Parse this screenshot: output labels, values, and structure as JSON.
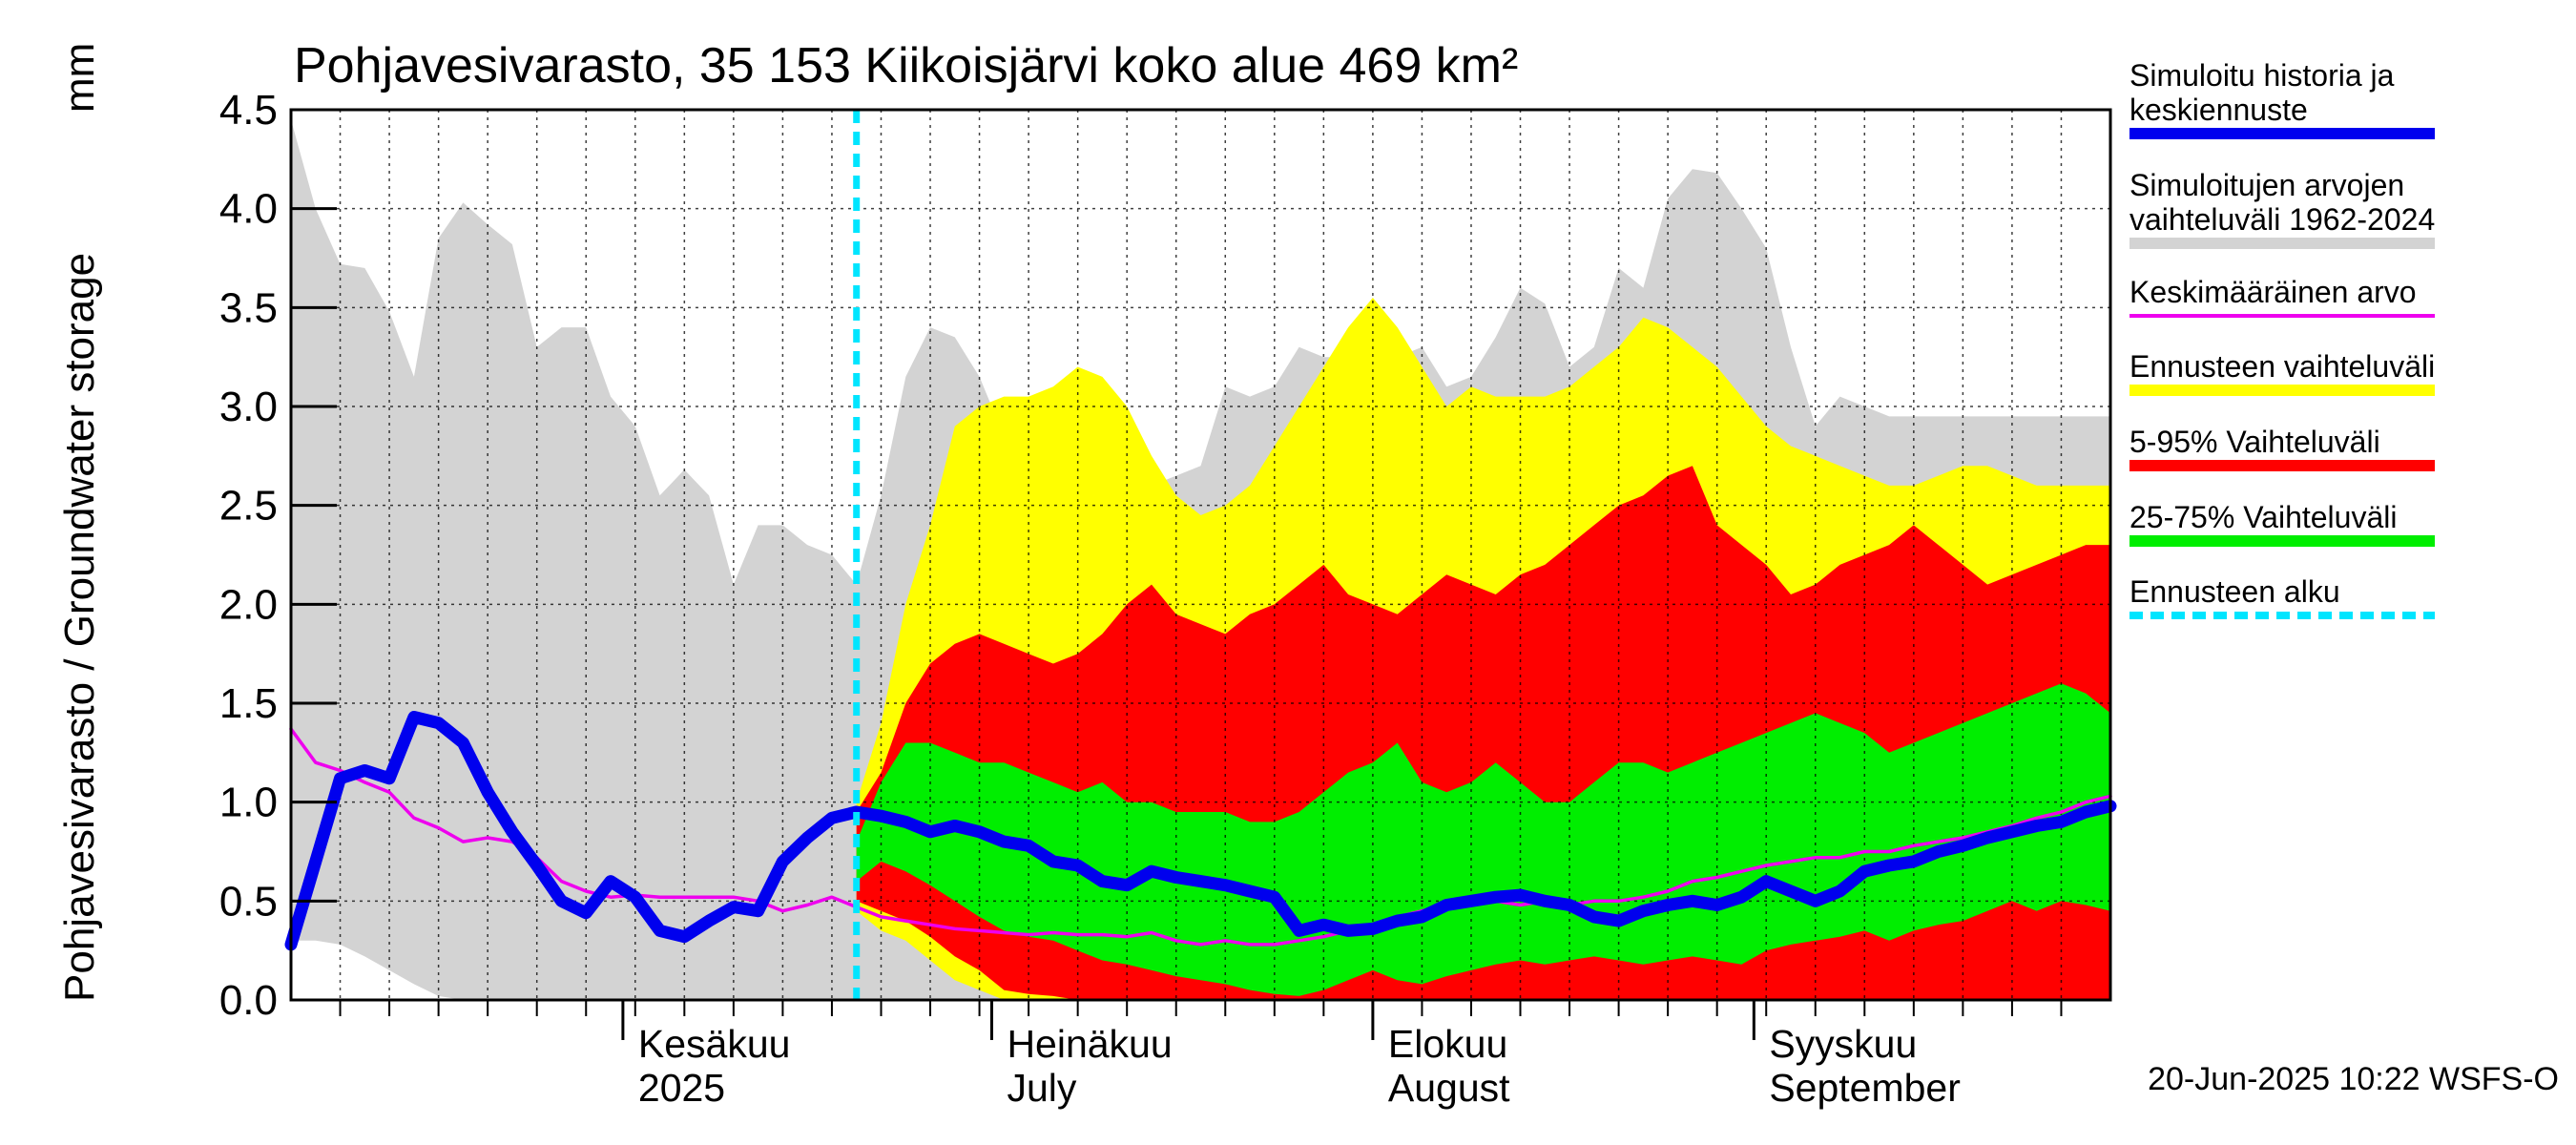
{
  "chart_data": {
    "type": "area",
    "title": "Pohjavesivarasto, 35 153 Kiikoisjärvi koko alue 469 km²",
    "ylabel": "Pohjavesivarasto / Groundwater storage",
    "yunit": "mm",
    "ylim": [
      0,
      4.5
    ],
    "yticks": [
      "0.0",
      "0.5",
      "1.0",
      "1.5",
      "2.0",
      "2.5",
      "3.0",
      "3.5",
      "4.0",
      "4.5"
    ],
    "xlim": [
      "2025-05-05",
      "2025-09-30"
    ],
    "forecast_start": "2025-06-20",
    "months": [
      {
        "date": "2025-06-01",
        "label1": "Kesäkuu",
        "label2": "2025"
      },
      {
        "date": "2025-07-01",
        "label1": "Heinäkuu",
        "label2": "July"
      },
      {
        "date": "2025-08-01",
        "label1": "Elokuu",
        "label2": "August"
      },
      {
        "date": "2025-09-01",
        "label1": "Syyskuu",
        "label2": "September"
      }
    ],
    "colors": {
      "hist_range": "#d3d3d3",
      "forecast_range": "#ffff00",
      "p5_95": "#ff0000",
      "p25_75": "#00ee00",
      "median": "#0000ee",
      "mean": "#ee00ee",
      "forecast_start": "#00e5ff"
    },
    "legend": [
      {
        "label": "Simuloitu historia ja keskiennuste",
        "color": "#0000ee",
        "style": "solid"
      },
      {
        "label": "Simuloitujen arvojen vaihteluväli 1962-2024",
        "color": "#d3d3d3",
        "style": "solid"
      },
      {
        "label": "Keskimääräinen arvo",
        "color": "#ee00ee",
        "style": "thin"
      },
      {
        "label": "Ennusteen vaihteluväli",
        "color": "#ffff00",
        "style": "solid"
      },
      {
        "label": "5-95% Vaihteluväli",
        "color": "#ff0000",
        "style": "solid"
      },
      {
        "label": "25-75% Vaihteluväli",
        "color": "#00ee00",
        "style": "solid"
      },
      {
        "label": "Ennusteen alku",
        "color": "#00e5ff",
        "style": "dashed"
      }
    ],
    "timestamp": "20-Jun-2025 10:22 WSFS-O",
    "series": {
      "hist_range": {
        "x": [
          "2025-05-05",
          "2025-05-07",
          "2025-05-09",
          "2025-05-11",
          "2025-05-13",
          "2025-05-15",
          "2025-05-17",
          "2025-05-19",
          "2025-05-21",
          "2025-05-23",
          "2025-05-25",
          "2025-05-27",
          "2025-05-29",
          "2025-05-31",
          "2025-06-02",
          "2025-06-04",
          "2025-06-06",
          "2025-06-08",
          "2025-06-10",
          "2025-06-12",
          "2025-06-14",
          "2025-06-16",
          "2025-06-18",
          "2025-06-20",
          "2025-06-22",
          "2025-06-24",
          "2025-06-26",
          "2025-06-28",
          "2025-06-30",
          "2025-07-02",
          "2025-07-04",
          "2025-07-06",
          "2025-07-08",
          "2025-07-10",
          "2025-07-12",
          "2025-07-14",
          "2025-07-16",
          "2025-07-18",
          "2025-07-20",
          "2025-07-22",
          "2025-07-24",
          "2025-07-26",
          "2025-07-28",
          "2025-07-30",
          "2025-08-01",
          "2025-08-03",
          "2025-08-05",
          "2025-08-07",
          "2025-08-09",
          "2025-08-11",
          "2025-08-13",
          "2025-08-15",
          "2025-08-17",
          "2025-08-19",
          "2025-08-21",
          "2025-08-23",
          "2025-08-25",
          "2025-08-27",
          "2025-08-29",
          "2025-08-31",
          "2025-09-02",
          "2025-09-04",
          "2025-09-06",
          "2025-09-08",
          "2025-09-10",
          "2025-09-12",
          "2025-09-14",
          "2025-09-16",
          "2025-09-18",
          "2025-09-20",
          "2025-09-22",
          "2025-09-24",
          "2025-09-26",
          "2025-09-28",
          "2025-09-30"
        ],
        "low": [
          0.3,
          0.3,
          0.28,
          0.22,
          0.15,
          0.08,
          0.02,
          0,
          0,
          0,
          0,
          0,
          0,
          0,
          0,
          0,
          0,
          0,
          0,
          0,
          0,
          0,
          0,
          0,
          0,
          0,
          0,
          0,
          0,
          0,
          0,
          0,
          0,
          0,
          0,
          0,
          0,
          0,
          0,
          0,
          0,
          0,
          0,
          0,
          0,
          0,
          0,
          0,
          0,
          0,
          0,
          0,
          0,
          0,
          0,
          0,
          0,
          0,
          0,
          0,
          0,
          0,
          0,
          0,
          0,
          0,
          0,
          0,
          0,
          0,
          0,
          0,
          0,
          0,
          0
        ],
        "high": [
          4.45,
          4.0,
          3.72,
          3.7,
          3.48,
          3.15,
          3.85,
          4.03,
          3.92,
          3.82,
          3.3,
          3.4,
          3.4,
          3.05,
          2.9,
          2.55,
          2.68,
          2.55,
          2.1,
          2.4,
          2.4,
          2.3,
          2.25,
          2.1,
          2.55,
          3.15,
          3.4,
          3.35,
          3.15,
          2.85,
          2.5,
          2.48,
          2.45,
          2.7,
          2.8,
          2.6,
          2.65,
          2.7,
          3.1,
          3.05,
          3.1,
          3.3,
          3.25,
          3.25,
          3.4,
          3.25,
          3.3,
          3.1,
          3.15,
          3.35,
          3.6,
          3.52,
          3.2,
          3.3,
          3.7,
          3.6,
          4.05,
          4.2,
          4.18,
          4.0,
          3.8,
          3.3,
          2.9,
          3.05,
          3.0,
          2.95,
          2.95,
          2.95,
          2.95,
          2.95,
          2.95,
          2.95,
          2.95,
          2.95,
          2.95
        ]
      },
      "forecast": {
        "x": [
          "2025-06-20",
          "2025-06-22",
          "2025-06-24",
          "2025-06-26",
          "2025-06-28",
          "2025-06-30",
          "2025-07-02",
          "2025-07-04",
          "2025-07-06",
          "2025-07-08",
          "2025-07-10",
          "2025-07-12",
          "2025-07-14",
          "2025-07-16",
          "2025-07-18",
          "2025-07-20",
          "2025-07-22",
          "2025-07-24",
          "2025-07-26",
          "2025-07-28",
          "2025-07-30",
          "2025-08-01",
          "2025-08-03",
          "2025-08-05",
          "2025-08-07",
          "2025-08-09",
          "2025-08-11",
          "2025-08-13",
          "2025-08-15",
          "2025-08-17",
          "2025-08-19",
          "2025-08-21",
          "2025-08-23",
          "2025-08-25",
          "2025-08-27",
          "2025-08-29",
          "2025-08-31",
          "2025-09-02",
          "2025-09-04",
          "2025-09-06",
          "2025-09-08",
          "2025-09-10",
          "2025-09-12",
          "2025-09-14",
          "2025-09-16",
          "2025-09-18",
          "2025-09-20",
          "2025-09-22",
          "2025-09-24",
          "2025-09-26",
          "2025-09-28",
          "2025-09-30"
        ],
        "min": [
          0.45,
          0.35,
          0.3,
          0.2,
          0.1,
          0.05,
          0,
          0,
          0,
          0,
          0,
          0,
          0,
          0,
          0,
          0,
          0,
          0,
          0,
          0,
          0,
          0,
          0,
          0,
          0,
          0,
          0,
          0,
          0,
          0,
          0,
          0,
          0,
          0,
          0,
          0,
          0,
          0,
          0,
          0,
          0,
          0,
          0,
          0,
          0,
          0,
          0,
          0,
          0,
          0,
          0,
          0
        ],
        "p5": [
          0.5,
          0.45,
          0.4,
          0.32,
          0.22,
          0.15,
          0.05,
          0.03,
          0.02,
          0,
          0,
          0,
          0,
          0,
          0,
          0,
          0,
          0,
          0,
          0,
          0,
          0,
          0,
          0,
          0,
          0,
          0,
          0,
          0,
          0,
          0,
          0,
          0,
          0,
          0,
          0,
          0,
          0,
          0,
          0,
          0,
          0,
          0,
          0,
          0,
          0,
          0,
          0,
          0,
          0,
          0,
          0
        ],
        "p25": [
          0.6,
          0.7,
          0.65,
          0.58,
          0.5,
          0.42,
          0.35,
          0.32,
          0.3,
          0.25,
          0.2,
          0.18,
          0.15,
          0.12,
          0.1,
          0.08,
          0.05,
          0.03,
          0.02,
          0.05,
          0.1,
          0.15,
          0.1,
          0.08,
          0.12,
          0.15,
          0.18,
          0.2,
          0.18,
          0.2,
          0.22,
          0.2,
          0.18,
          0.2,
          0.22,
          0.2,
          0.18,
          0.25,
          0.28,
          0.3,
          0.32,
          0.35,
          0.3,
          0.35,
          0.38,
          0.4,
          0.45,
          0.5,
          0.45,
          0.5,
          0.48,
          0.45
        ],
        "p75": [
          0.8,
          1.1,
          1.3,
          1.3,
          1.25,
          1.2,
          1.2,
          1.15,
          1.1,
          1.05,
          1.1,
          1.0,
          1.0,
          0.95,
          0.95,
          0.95,
          0.9,
          0.9,
          0.95,
          1.05,
          1.15,
          1.2,
          1.3,
          1.1,
          1.05,
          1.1,
          1.2,
          1.1,
          1.0,
          1.0,
          1.1,
          1.2,
          1.2,
          1.15,
          1.2,
          1.25,
          1.3,
          1.35,
          1.4,
          1.45,
          1.4,
          1.35,
          1.25,
          1.3,
          1.35,
          1.4,
          1.45,
          1.5,
          1.55,
          1.6,
          1.55,
          1.45
        ],
        "p95": [
          0.95,
          1.15,
          1.5,
          1.7,
          1.8,
          1.85,
          1.8,
          1.75,
          1.7,
          1.75,
          1.85,
          2.0,
          2.1,
          1.95,
          1.9,
          1.85,
          1.95,
          2.0,
          2.1,
          2.2,
          2.05,
          2.0,
          1.95,
          2.05,
          2.15,
          2.1,
          2.05,
          2.15,
          2.2,
          2.3,
          2.4,
          2.5,
          2.55,
          2.65,
          2.7,
          2.4,
          2.3,
          2.2,
          2.05,
          2.1,
          2.2,
          2.25,
          2.3,
          2.4,
          2.3,
          2.2,
          2.1,
          2.15,
          2.2,
          2.25,
          2.3,
          2.3
        ],
        "max": [
          1.0,
          1.4,
          2.0,
          2.4,
          2.9,
          3.0,
          3.05,
          3.05,
          3.1,
          3.2,
          3.15,
          3.0,
          2.75,
          2.55,
          2.45,
          2.5,
          2.6,
          2.8,
          3.0,
          3.2,
          3.4,
          3.55,
          3.4,
          3.2,
          3.0,
          3.1,
          3.05,
          3.05,
          3.05,
          3.1,
          3.2,
          3.3,
          3.45,
          3.4,
          3.3,
          3.2,
          3.05,
          2.9,
          2.8,
          2.75,
          2.7,
          2.65,
          2.6,
          2.6,
          2.65,
          2.7,
          2.7,
          2.65,
          2.6,
          2.6,
          2.6,
          2.6
        ]
      },
      "mean": {
        "x": [
          "2025-05-05",
          "2025-05-07",
          "2025-05-09",
          "2025-05-11",
          "2025-05-13",
          "2025-05-15",
          "2025-05-17",
          "2025-05-19",
          "2025-05-21",
          "2025-05-23",
          "2025-05-25",
          "2025-05-27",
          "2025-05-29",
          "2025-05-31",
          "2025-06-02",
          "2025-06-04",
          "2025-06-06",
          "2025-06-08",
          "2025-06-10",
          "2025-06-12",
          "2025-06-14",
          "2025-06-16",
          "2025-06-18",
          "2025-06-20",
          "2025-06-22",
          "2025-06-24",
          "2025-06-26",
          "2025-06-28",
          "2025-06-30",
          "2025-07-02",
          "2025-07-04",
          "2025-07-06",
          "2025-07-08",
          "2025-07-10",
          "2025-07-12",
          "2025-07-14",
          "2025-07-16",
          "2025-07-18",
          "2025-07-20",
          "2025-07-22",
          "2025-07-24",
          "2025-07-26",
          "2025-07-28",
          "2025-07-30",
          "2025-08-01",
          "2025-08-03",
          "2025-08-05",
          "2025-08-07",
          "2025-08-09",
          "2025-08-11",
          "2025-08-13",
          "2025-08-15",
          "2025-08-17",
          "2025-08-19",
          "2025-08-21",
          "2025-08-23",
          "2025-08-25",
          "2025-08-27",
          "2025-08-29",
          "2025-08-31",
          "2025-09-02",
          "2025-09-04",
          "2025-09-06",
          "2025-09-08",
          "2025-09-10",
          "2025-09-12",
          "2025-09-14",
          "2025-09-16",
          "2025-09-18",
          "2025-09-20",
          "2025-09-22",
          "2025-09-24",
          "2025-09-26",
          "2025-09-28",
          "2025-09-30"
        ],
        "values": [
          1.37,
          1.2,
          1.16,
          1.1,
          1.05,
          0.92,
          0.87,
          0.8,
          0.82,
          0.8,
          0.72,
          0.6,
          0.55,
          0.52,
          0.53,
          0.52,
          0.52,
          0.52,
          0.52,
          0.5,
          0.45,
          0.48,
          0.52,
          0.47,
          0.42,
          0.4,
          0.38,
          0.36,
          0.35,
          0.34,
          0.33,
          0.34,
          0.33,
          0.33,
          0.32,
          0.34,
          0.3,
          0.28,
          0.3,
          0.28,
          0.28,
          0.3,
          0.32,
          0.35,
          0.38,
          0.42,
          0.45,
          0.48,
          0.5,
          0.5,
          0.48,
          0.5,
          0.48,
          0.5,
          0.5,
          0.52,
          0.55,
          0.6,
          0.62,
          0.65,
          0.68,
          0.7,
          0.72,
          0.72,
          0.75,
          0.75,
          0.78,
          0.8,
          0.82,
          0.85,
          0.88,
          0.92,
          0.95,
          1.0,
          1.03
        ]
      },
      "median": {
        "x": [
          "2025-05-05",
          "2025-05-07",
          "2025-05-09",
          "2025-05-11",
          "2025-05-13",
          "2025-05-15",
          "2025-05-17",
          "2025-05-19",
          "2025-05-21",
          "2025-05-23",
          "2025-05-25",
          "2025-05-27",
          "2025-05-29",
          "2025-05-31",
          "2025-06-02",
          "2025-06-04",
          "2025-06-06",
          "2025-06-08",
          "2025-06-10",
          "2025-06-12",
          "2025-06-14",
          "2025-06-16",
          "2025-06-18",
          "2025-06-20",
          "2025-06-22",
          "2025-06-24",
          "2025-06-26",
          "2025-06-28",
          "2025-06-30",
          "2025-07-02",
          "2025-07-04",
          "2025-07-06",
          "2025-07-08",
          "2025-07-10",
          "2025-07-12",
          "2025-07-14",
          "2025-07-16",
          "2025-07-18",
          "2025-07-20",
          "2025-07-22",
          "2025-07-24",
          "2025-07-26",
          "2025-07-28",
          "2025-07-30",
          "2025-08-01",
          "2025-08-03",
          "2025-08-05",
          "2025-08-07",
          "2025-08-09",
          "2025-08-11",
          "2025-08-13",
          "2025-08-15",
          "2025-08-17",
          "2025-08-19",
          "2025-08-21",
          "2025-08-23",
          "2025-08-25",
          "2025-08-27",
          "2025-08-29",
          "2025-08-31",
          "2025-09-02",
          "2025-09-04",
          "2025-09-06",
          "2025-09-08",
          "2025-09-10",
          "2025-09-12",
          "2025-09-14",
          "2025-09-16",
          "2025-09-18",
          "2025-09-20",
          "2025-09-22",
          "2025-09-24",
          "2025-09-26",
          "2025-09-28",
          "2025-09-30"
        ],
        "values": [
          0.28,
          0.7,
          1.12,
          1.16,
          1.12,
          1.43,
          1.4,
          1.3,
          1.05,
          0.85,
          0.68,
          0.5,
          0.44,
          0.6,
          0.52,
          0.35,
          0.32,
          0.4,
          0.47,
          0.45,
          0.7,
          0.82,
          0.92,
          0.95,
          0.93,
          0.9,
          0.85,
          0.88,
          0.85,
          0.8,
          0.78,
          0.7,
          0.68,
          0.6,
          0.58,
          0.65,
          0.62,
          0.6,
          0.58,
          0.55,
          0.52,
          0.35,
          0.38,
          0.35,
          0.36,
          0.4,
          0.42,
          0.48,
          0.5,
          0.52,
          0.53,
          0.5,
          0.48,
          0.42,
          0.4,
          0.45,
          0.48,
          0.5,
          0.48,
          0.52,
          0.6,
          0.55,
          0.5,
          0.55,
          0.65,
          0.68,
          0.7,
          0.75,
          0.78,
          0.82,
          0.85,
          0.88,
          0.9,
          0.95,
          0.98
        ]
      }
    }
  }
}
